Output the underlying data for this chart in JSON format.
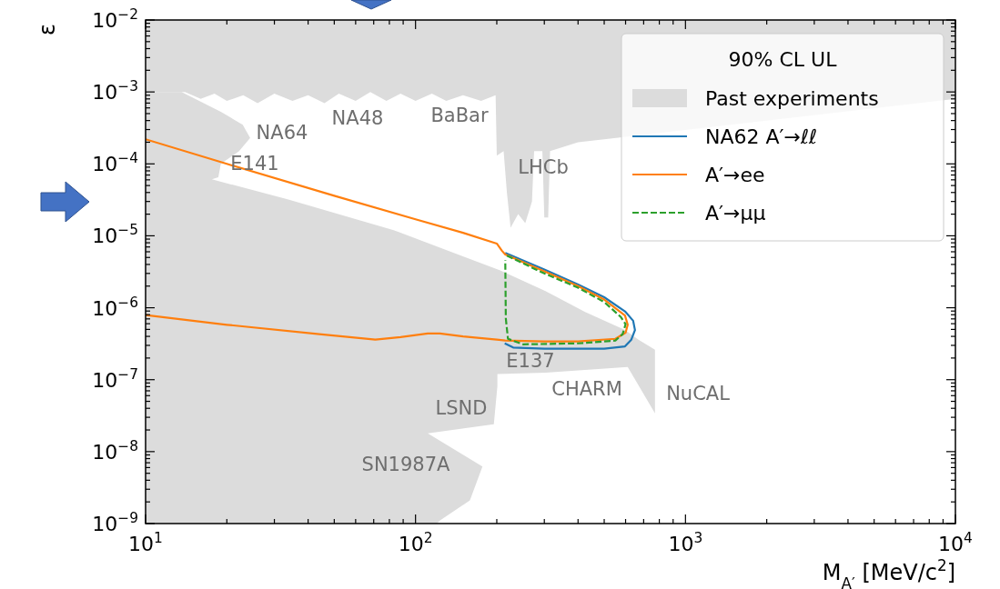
{
  "chart_data": {
    "type": "line",
    "xlabel": "M$_{A′}$ [MeV/c$^{2}$]",
    "ylabel": "ε",
    "legend_title": "90% CL UL",
    "legend": "top right",
    "log": "xy",
    "xlim": [
      10,
      10000
    ],
    "ylim": [
      1e-09,
      0.01
    ],
    "xticks": [
      {
        "value": 10,
        "label": "10$^{1}$"
      },
      {
        "value": 20,
        "label": null
      },
      {
        "value": 30,
        "label": null
      },
      {
        "value": 40,
        "label": null
      },
      {
        "value": 50,
        "label": null
      },
      {
        "value": 60,
        "label": null
      },
      {
        "value": 70,
        "label": null
      },
      {
        "value": 80,
        "label": null
      },
      {
        "value": 90,
        "label": null
      },
      {
        "value": 100,
        "label": "10$^{2}$"
      },
      {
        "value": 200,
        "label": null
      },
      {
        "value": 300,
        "label": null
      },
      {
        "value": 400,
        "label": null
      },
      {
        "value": 500,
        "label": null
      },
      {
        "value": 600,
        "label": null
      },
      {
        "value": 700,
        "label": null
      },
      {
        "value": 800,
        "label": null
      },
      {
        "value": 900,
        "label": null
      },
      {
        "value": 1000,
        "label": "10$^{3}$"
      },
      {
        "value": 2000,
        "label": null
      },
      {
        "value": 3000,
        "label": null
      },
      {
        "value": 4000,
        "label": null
      },
      {
        "value": 5000,
        "label": null
      },
      {
        "value": 6000,
        "label": null
      },
      {
        "value": 7000,
        "label": null
      },
      {
        "value": 8000,
        "label": null
      },
      {
        "value": 9000,
        "label": null
      },
      {
        "value": 10000,
        "label": "10$^{4}$"
      }
    ],
    "yticks": [
      {
        "value": 1e-09,
        "label": "10$^{−9}$"
      },
      {
        "value": 2e-09,
        "label": null
      },
      {
        "value": 3e-09,
        "label": null
      },
      {
        "value": 4e-09,
        "label": null
      },
      {
        "value": 5e-09,
        "label": null
      },
      {
        "value": 6e-09,
        "label": null
      },
      {
        "value": 7e-09,
        "label": null
      },
      {
        "value": 8e-09,
        "label": null
      },
      {
        "value": 9e-09,
        "label": null
      },
      {
        "value": 1e-08,
        "label": "10$^{−8}$"
      },
      {
        "value": 2e-08,
        "label": null
      },
      {
        "value": 3e-08,
        "label": null
      },
      {
        "value": 4e-08,
        "label": null
      },
      {
        "value": 5e-08,
        "label": null
      },
      {
        "value": 6e-08,
        "label": null
      },
      {
        "value": 7e-08,
        "label": null
      },
      {
        "value": 8e-08,
        "label": null
      },
      {
        "value": 9e-08,
        "label": null
      },
      {
        "value": 1e-07,
        "label": "10$^{−7}$"
      },
      {
        "value": 2e-07,
        "label": null
      },
      {
        "value": 3e-07,
        "label": null
      },
      {
        "value": 4e-07,
        "label": null
      },
      {
        "value": 5e-07,
        "label": null
      },
      {
        "value": 6e-07,
        "label": null
      },
      {
        "value": 7e-07,
        "label": null
      },
      {
        "value": 8e-07,
        "label": null
      },
      {
        "value": 9e-07,
        "label": null
      },
      {
        "value": 1e-06,
        "label": "10$^{−6}$"
      },
      {
        "value": 2e-06,
        "label": null
      },
      {
        "value": 3e-06,
        "label": null
      },
      {
        "value": 4e-06,
        "label": null
      },
      {
        "value": 5e-06,
        "label": null
      },
      {
        "value": 6e-06,
        "label": null
      },
      {
        "value": 7e-06,
        "label": null
      },
      {
        "value": 8e-06,
        "label": null
      },
      {
        "value": 9e-06,
        "label": null
      },
      {
        "value": 1e-05,
        "label": "10$^{−5}$"
      },
      {
        "value": 2e-05,
        "label": null
      },
      {
        "value": 3e-05,
        "label": null
      },
      {
        "value": 4e-05,
        "label": null
      },
      {
        "value": 5e-05,
        "label": null
      },
      {
        "value": 6e-05,
        "label": null
      },
      {
        "value": 7e-05,
        "label": null
      },
      {
        "value": 8e-05,
        "label": null
      },
      {
        "value": 9e-05,
        "label": null
      },
      {
        "value": 0.0001,
        "label": "10$^{−4}$"
      },
      {
        "value": 0.0002,
        "label": null
      },
      {
        "value": 0.0003,
        "label": null
      },
      {
        "value": 0.0004,
        "label": null
      },
      {
        "value": 0.0005,
        "label": null
      },
      {
        "value": 0.0006,
        "label": null
      },
      {
        "value": 0.0007,
        "label": null
      },
      {
        "value": 0.0008,
        "label": null
      },
      {
        "value": 0.0009,
        "label": null
      },
      {
        "value": 0.001,
        "label": "10$^{−3}$"
      },
      {
        "value": 0.002,
        "label": null
      },
      {
        "value": 0.003,
        "label": null
      },
      {
        "value": 0.004,
        "label": null
      },
      {
        "value": 0.005,
        "label": null
      },
      {
        "value": 0.006,
        "label": null
      },
      {
        "value": 0.007,
        "label": null
      },
      {
        "value": 0.008,
        "label": null
      },
      {
        "value": 0.009,
        "label": null
      },
      {
        "value": 0.01,
        "label": "10$^{−2}$"
      }
    ],
    "series": [
      {
        "name": "Past experiments",
        "type": "area",
        "color": "#dcdcdc",
        "x": [
          10,
          13.6,
          19,
          22.9,
          24.4,
          22.2,
          19,
          18.6,
          17.6,
          33.8,
          83,
          206,
          303,
          425,
          597,
          670,
          771,
          771,
          611,
          303,
          201,
          201,
          195,
          111,
          177,
          159,
          123,
          120
        ],
        "values": [
          0.001,
          0.001,
          0.00053,
          0.00035,
          0.00023,
          0.00015,
          0.0001,
          6.5e-05,
          6.1e-05,
          3.2e-05,
          1.2e-05,
          3.3e-06,
          1.7e-06,
          8.7e-07,
          4.9e-07,
          3.6e-07,
          2.6e-07,
          3.4e-08,
          1.5e-07,
          1.25e-07,
          1.2e-07,
          8.1e-08,
          2.4e-08,
          1.8e-08,
          6.2e-09,
          2.1e-09,
          1.1e-09,
          1e-09
        ]
      },
      {
        "type": "area",
        "color": "#dcdcdc",
        "x": [
          10,
          14,
          16,
          18,
          20,
          23,
          26,
          30,
          35,
          40,
          46,
          52,
          60,
          68,
          78,
          88,
          100,
          115,
          130,
          150,
          175,
          198,
          200,
          212,
          218,
          225,
          240,
          255,
          270,
          275,
          295,
          300,
          310,
          315,
          400,
          500,
          660,
          771,
          800,
          10000,
          10000,
          10
        ],
        "values": [
          0.001,
          0.001,
          0.0008,
          0.00095,
          0.00075,
          0.0009,
          0.0007,
          0.00095,
          0.00075,
          0.0009,
          0.0007,
          0.00095,
          0.00075,
          0.001,
          0.00075,
          0.00095,
          0.00075,
          0.00095,
          0.00075,
          0.0009,
          0.00075,
          0.0009,
          0.00013,
          0.00015,
          4e-05,
          1.3e-05,
          2e-05,
          1.5e-05,
          3e-05,
          0.00015,
          0.00015,
          1.8e-05,
          1.8e-05,
          0.00015,
          0.0002,
          0.00022,
          null,
          null,
          null,
          0.0008,
          0.01,
          0.01
        ]
      },
      {
        "name": "NA62 A′→ℓℓ",
        "color": "#1f77b4",
        "x": [
          215,
          300,
          400,
          500,
          597,
          640,
          650,
          630,
          597,
          500,
          300,
          230,
          214
        ],
        "values": [
          5.8e-06,
          3.4e-06,
          2.1e-06,
          1.4e-06,
          8.9e-07,
          6.6e-07,
          4.9e-07,
          3.6e-07,
          2.9e-07,
          2.7e-07,
          2.7e-07,
          2.8e-07,
          3.2e-07
        ]
      },
      {
        "name": "A′→ee",
        "color": "#ff7f0e",
        "x": [
          10,
          20,
          50,
          100,
          150,
          200,
          209,
          215,
          300,
          400,
          500,
          597,
          611,
          600,
          550,
          400,
          300,
          215,
          200,
          150,
          123,
          111,
          88,
          71,
          44,
          20,
          10
        ],
        "values": [
          0.00022,
          0.0001,
          3.6e-05,
          1.7e-05,
          1.1e-05,
          7.8e-06,
          6.2e-06,
          5.5e-06,
          3.2e-06,
          2e-06,
          1.3e-06,
          7.8e-07,
          5.8e-07,
          4.5e-07,
          3.7e-07,
          3.4e-07,
          3.4e-07,
          3.5e-07,
          3.6e-07,
          4e-07,
          4.4e-07,
          4.4e-07,
          3.9e-07,
          3.6e-07,
          4.3e-07,
          5.8e-07,
          7.9e-07
        ]
      },
      {
        "name": "A′→μμ",
        "color": "#2ca02c",
        "line_style": "dashed",
        "x": [
          218,
          300,
          400,
          500,
          575,
          600,
          585,
          550,
          400,
          250,
          220,
          216,
          215
        ],
        "values": [
          5.3e-06,
          3e-06,
          1.9e-06,
          1.2e-06,
          7.5e-07,
          5.9e-07,
          4.3e-07,
          3.5e-07,
          3.2e-07,
          3.1e-07,
          3.7e-07,
          7.1e-07,
          4.6e-06
        ]
      }
    ],
    "annotations": [
      "NA64",
      "NA48",
      "BaBar",
      "LHCb",
      "E141",
      "E137",
      "CHARM",
      "NuCAL",
      "LSND",
      "SN1987A"
    ]
  }
}
